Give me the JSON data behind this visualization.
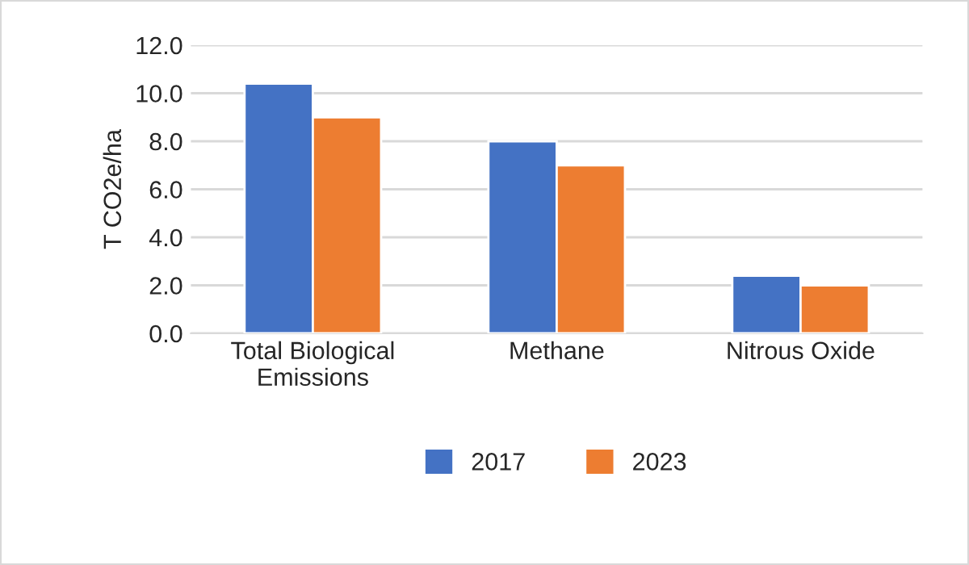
{
  "chart_data": {
    "type": "bar",
    "ylabel": "T CO2e/ha",
    "categories": [
      "Total Biological\nEmissions",
      "Methane",
      "Nitrous Oxide"
    ],
    "series": [
      {
        "name": "2017",
        "color": "#4472c4",
        "values": [
          10.4,
          8.0,
          2.4
        ]
      },
      {
        "name": "2023",
        "color": "#ed7d31",
        "values": [
          9.0,
          7.0,
          2.0
        ]
      }
    ],
    "ylim": [
      0,
      12
    ],
    "yticks": [
      {
        "value": 0,
        "label": "0.0"
      },
      {
        "value": 2,
        "label": "2.0"
      },
      {
        "value": 4,
        "label": "4.0"
      },
      {
        "value": 6,
        "label": "6.0"
      },
      {
        "value": 8,
        "label": "8.0"
      },
      {
        "value": 10,
        "label": "10.0"
      },
      {
        "value": 12,
        "label": "12.0"
      }
    ],
    "grid": "y",
    "legend": "bottom"
  }
}
